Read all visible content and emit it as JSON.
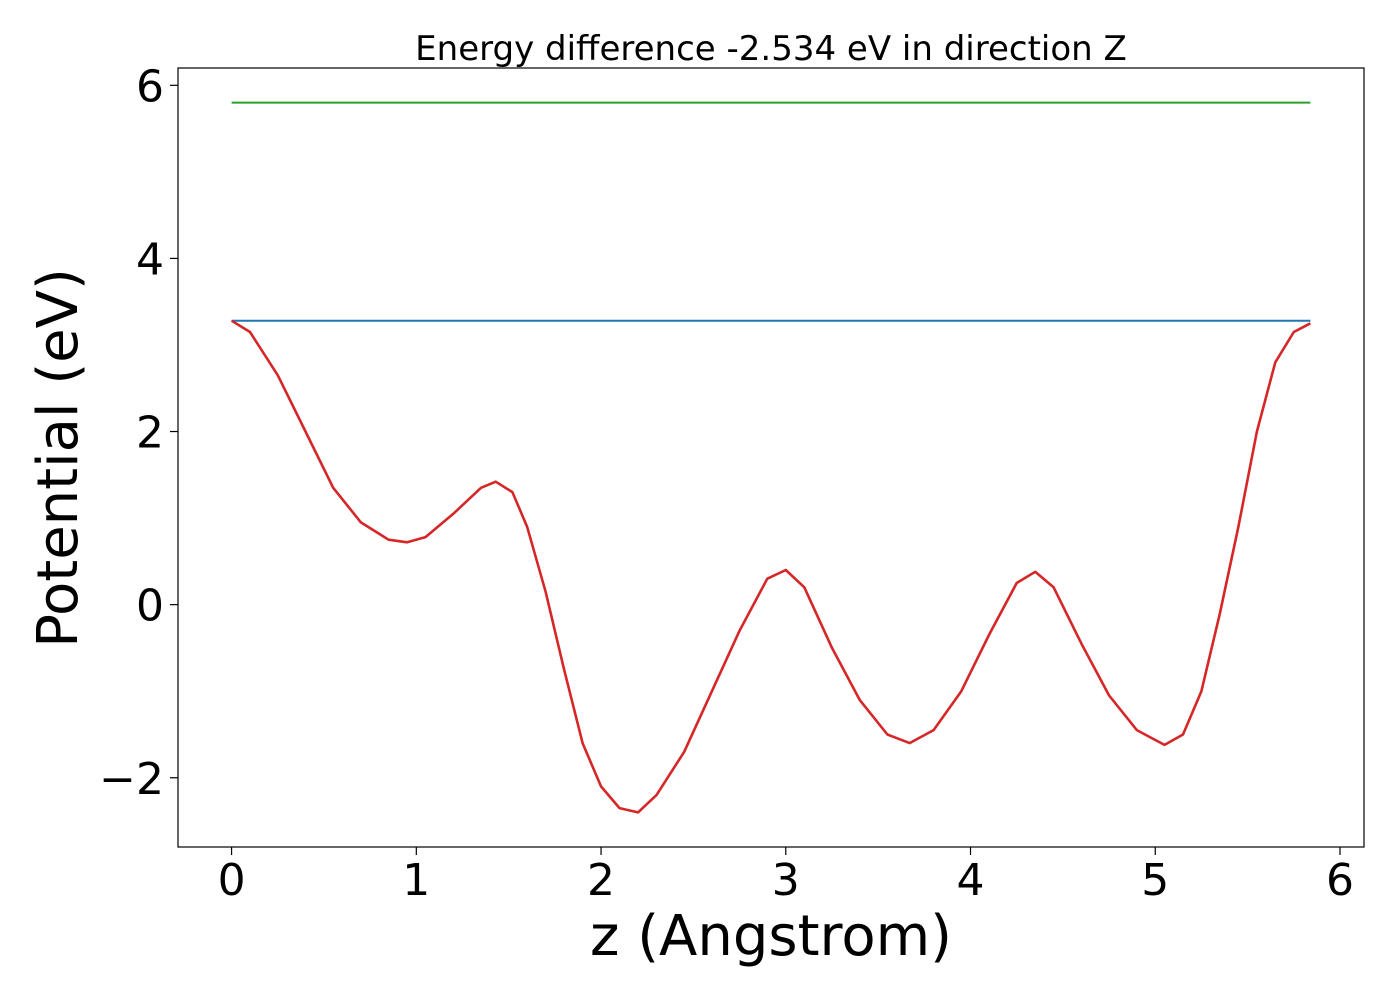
{
  "chart_data": {
    "type": "line",
    "title": "Energy difference -2.534 eV in direction Z",
    "xlabel": "z (Angstrom)",
    "ylabel": "Potential (eV)",
    "xlim": [
      -0.29,
      6.13
    ],
    "ylim": [
      -2.8,
      6.2
    ],
    "xticks": [
      0,
      1,
      2,
      3,
      4,
      5,
      6
    ],
    "xtick_labels": [
      "0",
      "1",
      "2",
      "3",
      "4",
      "5",
      "6"
    ],
    "yticks": [
      -2,
      0,
      2,
      4,
      6
    ],
    "ytick_labels": [
      "−2",
      "0",
      "2",
      "4",
      "6"
    ],
    "grid": false,
    "legend": "none",
    "series": [
      {
        "color": "#2ca02c",
        "x": [
          0,
          5.84
        ],
        "y": [
          5.8,
          5.8
        ]
      },
      {
        "color": "#1f77b4",
        "x": [
          0,
          5.84
        ],
        "y": [
          3.28,
          3.28
        ]
      },
      {
        "color": "#d62728",
        "x": [
          0,
          0.1,
          0.25,
          0.4,
          0.55,
          0.7,
          0.85,
          0.95,
          1.05,
          1.2,
          1.35,
          1.43,
          1.52,
          1.6,
          1.7,
          1.8,
          1.9,
          2.0,
          2.1,
          2.2,
          2.3,
          2.45,
          2.6,
          2.75,
          2.9,
          3.0,
          3.1,
          3.25,
          3.4,
          3.55,
          3.67,
          3.8,
          3.95,
          4.1,
          4.25,
          4.35,
          4.45,
          4.6,
          4.75,
          4.9,
          5.05,
          5.15,
          5.25,
          5.35,
          5.45,
          5.55,
          5.65,
          5.75,
          5.84
        ],
        "y": [
          3.28,
          3.15,
          2.65,
          2.0,
          1.35,
          0.95,
          0.75,
          0.72,
          0.78,
          1.05,
          1.35,
          1.42,
          1.3,
          0.9,
          0.15,
          -0.75,
          -1.6,
          -2.1,
          -2.35,
          -2.4,
          -2.2,
          -1.7,
          -1.0,
          -0.3,
          0.3,
          0.4,
          0.2,
          -0.5,
          -1.1,
          -1.5,
          -1.6,
          -1.45,
          -1.0,
          -0.35,
          0.25,
          0.38,
          0.2,
          -0.45,
          -1.05,
          -1.45,
          -1.62,
          -1.5,
          -1.0,
          -0.1,
          0.9,
          2.0,
          2.8,
          3.15,
          3.25
        ]
      }
    ]
  }
}
